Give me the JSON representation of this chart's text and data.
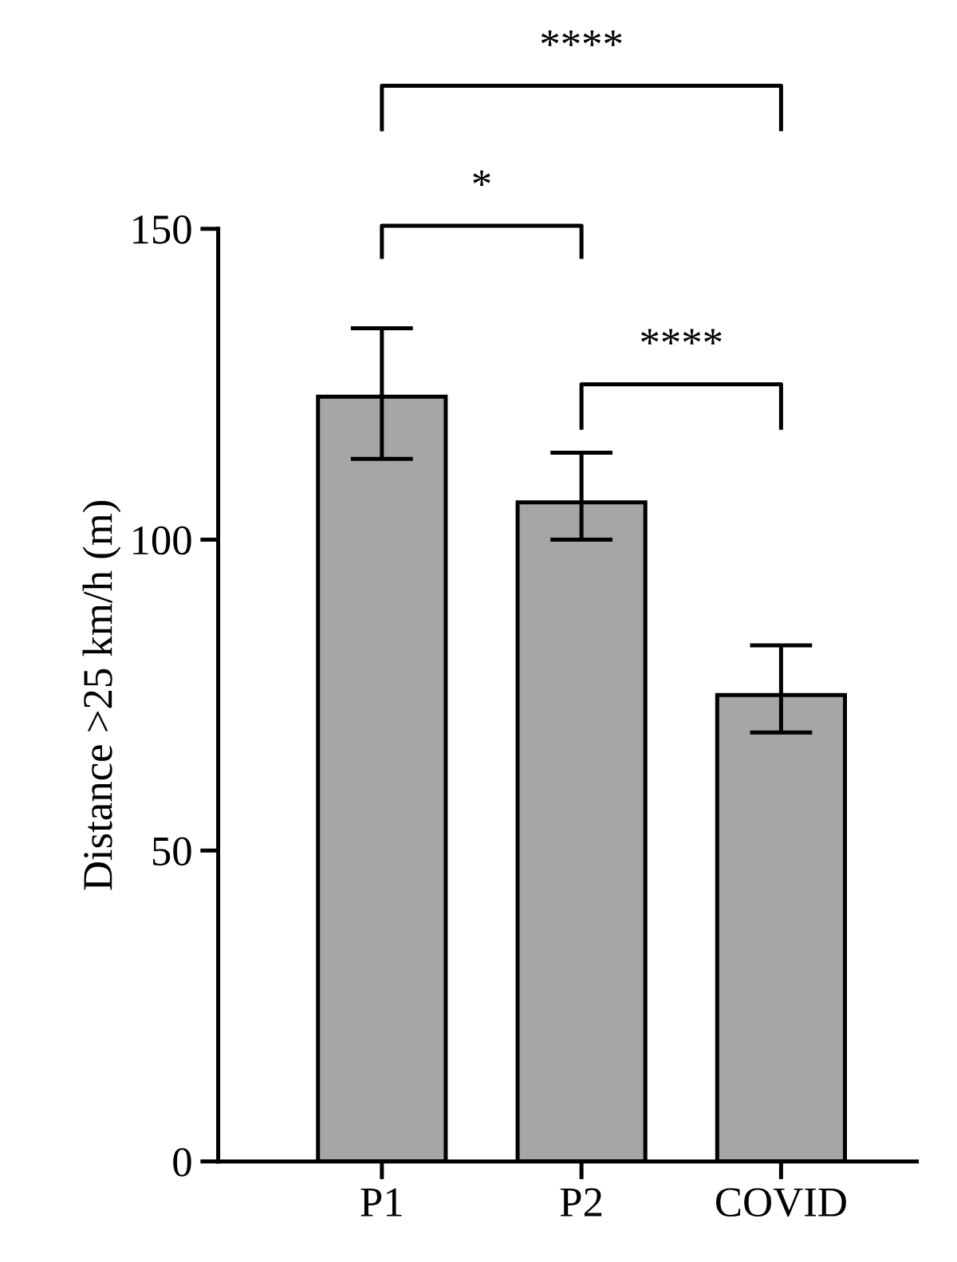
{
  "chart_data": {
    "type": "bar",
    "ylabel": "Distance >25 km/h (m)",
    "categories": [
      "P1",
      "P2",
      "COVID"
    ],
    "values": [
      123,
      106,
      75
    ],
    "color": "#a6a6a6",
    "errors": [
      [
        113,
        134
      ],
      [
        100,
        114
      ],
      [
        69,
        83
      ]
    ],
    "ylim": [
      0,
      150
    ],
    "yticks": [
      0,
      50,
      100,
      150
    ],
    "grid": false,
    "legend": false,
    "annotations": [
      "*",
      "****",
      "****"
    ]
  }
}
